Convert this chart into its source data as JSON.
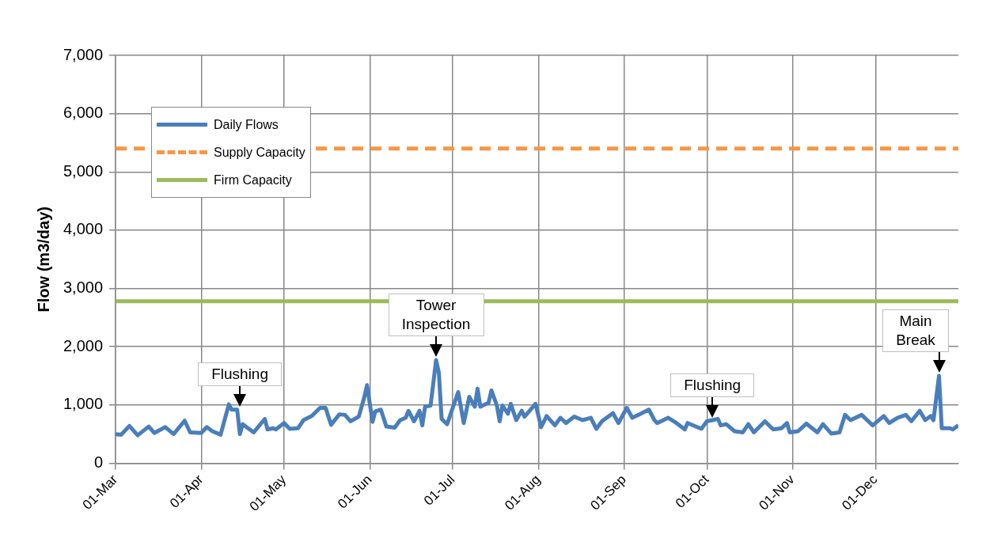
{
  "chart_data": {
    "type": "line",
    "ylabel": "Flow (m3/day)",
    "x": [
      "--03-01",
      "--03-03",
      "--03-06",
      "--03-09",
      "--03-13",
      "--03-15",
      "--03-19",
      "--03-22",
      "--03-26",
      "--03-28",
      "--04-01",
      "--04-03",
      "--04-05",
      "--04-08",
      "--04-11",
      "--04-12",
      "--04-14",
      "--04-15",
      "--04-16",
      "--04-20",
      "--04-24",
      "--04-25",
      "--04-27",
      "--04-28",
      "--05-01",
      "--05-03",
      "--05-06",
      "--05-08",
      "--05-11",
      "--05-14",
      "--05-16",
      "--05-18",
      "--05-21",
      "--05-23",
      "--05-25",
      "--05-28",
      "--05-30",
      "--05-31",
      "--06-02",
      "--06-03",
      "--06-05",
      "--06-07",
      "--06-10",
      "--06-12",
      "--06-14",
      "--06-15",
      "--06-17",
      "--06-19",
      "--06-20",
      "--06-21",
      "--06-23",
      "--06-25",
      "--06-26",
      "--06-27",
      "--06-29",
      "--07-01",
      "--07-03",
      "--07-05",
      "--07-07",
      "--07-09",
      "--07-10",
      "--07-11",
      "--07-14",
      "--07-15",
      "--07-17",
      "--07-18",
      "--07-19",
      "--07-21",
      "--07-22",
      "--07-24",
      "--07-26",
      "--07-27",
      "--07-31",
      "--08-02",
      "--08-04",
      "--08-07",
      "--08-09",
      "--08-11",
      "--08-14",
      "--08-17",
      "--08-20",
      "--08-22",
      "--08-24",
      "--08-28",
      "--08-30",
      "--09-02",
      "--09-04",
      "--09-07",
      "--09-10",
      "--09-12",
      "--09-13",
      "--09-17",
      "--09-20",
      "--09-23",
      "--09-24",
      "--09-29",
      "--10-01",
      "--10-05",
      "--10-06",
      "--10-08",
      "--10-11",
      "--10-14",
      "--10-16",
      "--10-18",
      "--10-22",
      "--10-25",
      "--10-28",
      "--10-30",
      "--10-31",
      "--11-03",
      "--11-06",
      "--11-10",
      "--11-12",
      "--11-15",
      "--11-18",
      "--11-20",
      "--11-22",
      "--11-26",
      "--11-30",
      "--12-04",
      "--12-06",
      "--12-09",
      "--12-12",
      "--12-14",
      "--12-17",
      "--12-19",
      "--12-21",
      "--12-22",
      "--12-24",
      "--12-25",
      "--12-28",
      "--12-29",
      "--12-31"
    ],
    "series": [
      {
        "name": "Daily Flows",
        "color": "#4a7ebb",
        "line_style": "solid",
        "values": [
          500,
          490,
          640,
          480,
          630,
          520,
          620,
          500,
          730,
          530,
          520,
          620,
          550,
          490,
          1010,
          920,
          920,
          500,
          670,
          530,
          760,
          580,
          600,
          580,
          690,
          590,
          600,
          740,
          810,
          950,
          950,
          660,
          840,
          830,
          720,
          800,
          1130,
          1340,
          710,
          890,
          920,
          630,
          610,
          740,
          780,
          900,
          720,
          900,
          650,
          970,
          990,
          1770,
          1550,
          760,
          670,
          950,
          1220,
          690,
          1140,
          970,
          1280,
          970,
          1040,
          1250,
          990,
          720,
          990,
          850,
          1020,
          740,
          900,
          800,
          1020,
          620,
          810,
          650,
          780,
          690,
          800,
          740,
          780,
          590,
          720,
          860,
          690,
          950,
          780,
          850,
          920,
          740,
          690,
          780,
          690,
          580,
          690,
          590,
          720,
          760,
          650,
          670,
          550,
          530,
          670,
          530,
          720,
          580,
          600,
          690,
          530,
          550,
          680,
          530,
          670,
          510,
          530,
          830,
          740,
          830,
          650,
          810,
          690,
          780,
          830,
          720,
          900,
          740,
          810,
          740,
          1500,
          600,
          600,
          580,
          650
        ]
      },
      {
        "name": "Supply Capacity",
        "color": "#f79646",
        "line_style": "dashed",
        "x": [
          "--03-01",
          "--12-31"
        ],
        "values": [
          5400,
          5400
        ]
      },
      {
        "name": "Firm Capacity",
        "color": "#9bbb59",
        "line_style": "solid",
        "x": [
          "--03-01",
          "--12-31"
        ],
        "values": [
          2780,
          2780
        ]
      }
    ],
    "xlim": [
      "--03-01",
      "--12-31"
    ],
    "xticks": [
      {
        "value": "--03-01",
        "label": "01-Mar"
      },
      {
        "value": "--04-01",
        "label": "01-Apr"
      },
      {
        "value": "--05-01",
        "label": "01-May"
      },
      {
        "value": "--06-01",
        "label": "01-Jun"
      },
      {
        "value": "--07-01",
        "label": "01-Jul"
      },
      {
        "value": "--08-01",
        "label": "01-Aug"
      },
      {
        "value": "--09-01",
        "label": "01-Sep"
      },
      {
        "value": "--10-01",
        "label": "01-Oct"
      },
      {
        "value": "--11-01",
        "label": "01-Nov"
      },
      {
        "value": "--12-01",
        "label": "01-Dec"
      }
    ],
    "ylim": [
      0,
      7000
    ],
    "yticks": [
      0,
      {
        "value": 1000,
        "label": "1,000"
      },
      {
        "value": 2000,
        "label": "2,000"
      },
      {
        "value": 3000,
        "label": "3,000"
      },
      {
        "value": 4000,
        "label": "4,000"
      },
      {
        "value": 5000,
        "label": "5,000"
      },
      {
        "value": 6000,
        "label": "6,000"
      },
      {
        "value": 7000,
        "label": "7,000"
      }
    ],
    "annotations": [
      {
        "text": "Flushing",
        "x": "--04-15",
        "y": 920
      },
      {
        "text": "Tower Inspection",
        "x": "--06-25",
        "y": 1770
      },
      {
        "text": "Flushing",
        "x": "--10-03",
        "y": 720
      },
      {
        "text": "Main Break",
        "x": "--12-24",
        "y": 1500
      }
    ],
    "grid": true,
    "legend": "top left",
    "marker": "none"
  }
}
